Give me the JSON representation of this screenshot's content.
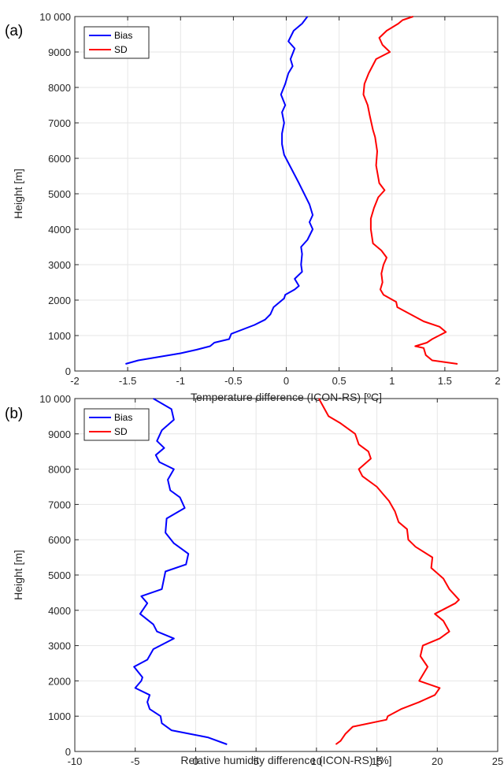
{
  "chart_data": [
    {
      "type": "line",
      "panel_label": "(a)",
      "xlabel": "Temperature difference (ICON-RS) [ºC]",
      "ylabel": "Height [m]",
      "xlim": [
        -2,
        2
      ],
      "ylim": [
        0,
        10000
      ],
      "xticks": [
        -2,
        -1.5,
        -1,
        -0.5,
        0,
        0.5,
        1,
        1.5,
        2
      ],
      "xtick_labels": [
        "-2",
        "-1.5",
        "-1",
        "-0.5",
        "0",
        "0.5",
        "1",
        "1.5",
        "2"
      ],
      "yticks": [
        0,
        1000,
        2000,
        3000,
        4000,
        5000,
        6000,
        7000,
        8000,
        9000,
        10000
      ],
      "ytick_labels": [
        "0",
        "1000",
        "2000",
        "3000",
        "4000",
        "5000",
        "6000",
        "7000",
        "8000",
        "9000",
        "10 000"
      ],
      "grid": true,
      "legend_position": "top-left",
      "series": [
        {
          "name": "Bias",
          "color": "#0000ff",
          "points": [
            [
              -1.52,
              200
            ],
            [
              -1.4,
              300
            ],
            [
              -1.2,
              400
            ],
            [
              -1.0,
              500
            ],
            [
              -0.85,
              600
            ],
            [
              -0.72,
              700
            ],
            [
              -0.68,
              800
            ],
            [
              -0.54,
              900
            ],
            [
              -0.52,
              1050
            ],
            [
              -0.3,
              1300
            ],
            [
              -0.2,
              1450
            ],
            [
              -0.15,
              1600
            ],
            [
              -0.12,
              1800
            ],
            [
              -0.02,
              2050
            ],
            [
              -0.01,
              2150
            ],
            [
              0.08,
              2300
            ],
            [
              0.12,
              2400
            ],
            [
              0.08,
              2600
            ],
            [
              0.15,
              2800
            ],
            [
              0.14,
              3000
            ],
            [
              0.15,
              3300
            ],
            [
              0.14,
              3500
            ],
            [
              0.2,
              3700
            ],
            [
              0.25,
              4000
            ],
            [
              0.22,
              4200
            ],
            [
              0.25,
              4400
            ],
            [
              0.22,
              4700
            ],
            [
              0.17,
              5000
            ],
            [
              0.12,
              5300
            ],
            [
              0.05,
              5700
            ],
            [
              -0.02,
              6100
            ],
            [
              -0.04,
              6400
            ],
            [
              -0.04,
              6700
            ],
            [
              -0.02,
              7000
            ],
            [
              -0.04,
              7300
            ],
            [
              -0.01,
              7500
            ],
            [
              -0.05,
              7800
            ],
            [
              -0.01,
              8100
            ],
            [
              0.02,
              8400
            ],
            [
              0.06,
              8600
            ],
            [
              0.04,
              8800
            ],
            [
              0.08,
              9100
            ],
            [
              0.02,
              9300
            ],
            [
              0.07,
              9600
            ],
            [
              0.15,
              9800
            ],
            [
              0.2,
              10000
            ]
          ]
        },
        {
          "name": "SD",
          "color": "#ff0000",
          "points": [
            [
              1.62,
              200
            ],
            [
              1.38,
              300
            ],
            [
              1.32,
              450
            ],
            [
              1.3,
              650
            ],
            [
              1.22,
              700
            ],
            [
              1.33,
              800
            ],
            [
              1.38,
              900
            ],
            [
              1.51,
              1100
            ],
            [
              1.45,
              1250
            ],
            [
              1.3,
              1400
            ],
            [
              1.05,
              1800
            ],
            [
              1.04,
              1950
            ],
            [
              0.92,
              2150
            ],
            [
              0.89,
              2300
            ],
            [
              0.91,
              2500
            ],
            [
              0.9,
              2750
            ],
            [
              0.92,
              3000
            ],
            [
              0.95,
              3200
            ],
            [
              0.9,
              3400
            ],
            [
              0.82,
              3600
            ],
            [
              0.8,
              4000
            ],
            [
              0.8,
              4300
            ],
            [
              0.83,
              4600
            ],
            [
              0.87,
              4900
            ],
            [
              0.93,
              5100
            ],
            [
              0.88,
              5300
            ],
            [
              0.85,
              5800
            ],
            [
              0.86,
              6200
            ],
            [
              0.84,
              6600
            ],
            [
              0.82,
              6800
            ],
            [
              0.79,
              7200
            ],
            [
              0.77,
              7500
            ],
            [
              0.73,
              7800
            ],
            [
              0.74,
              8100
            ],
            [
              0.78,
              8400
            ],
            [
              0.85,
              8800
            ],
            [
              0.98,
              9000
            ],
            [
              0.91,
              9200
            ],
            [
              0.88,
              9400
            ],
            [
              0.95,
              9600
            ],
            [
              1.06,
              9800
            ],
            [
              1.1,
              9900
            ],
            [
              1.2,
              10000
            ]
          ]
        }
      ]
    },
    {
      "type": "line",
      "panel_label": "(b)",
      "xlabel": "Relative humidity difference (ICON-RS) [%]",
      "ylabel": "Height [m]",
      "xlim": [
        -10,
        25
      ],
      "ylim": [
        0,
        10000
      ],
      "xticks": [
        -10,
        -5,
        0,
        5,
        10,
        15,
        20,
        25
      ],
      "xtick_labels": [
        "-10",
        "-5",
        "0",
        "5",
        "10",
        "15",
        "20",
        "25"
      ],
      "yticks": [
        0,
        1000,
        2000,
        3000,
        4000,
        5000,
        6000,
        7000,
        8000,
        9000,
        10000
      ],
      "ytick_labels": [
        "0",
        "1000",
        "2000",
        "3000",
        "4000",
        "5000",
        "6000",
        "7000",
        "8000",
        "9000",
        "10 000"
      ],
      "grid": true,
      "legend_position": "top-left",
      "series": [
        {
          "name": "Bias",
          "color": "#0000ff",
          "points": [
            [
              2.6,
              200
            ],
            [
              1.0,
              400
            ],
            [
              -0.5,
              500
            ],
            [
              -2.0,
              600
            ],
            [
              -2.8,
              800
            ],
            [
              -2.9,
              1000
            ],
            [
              -3.8,
              1200
            ],
            [
              -4.0,
              1400
            ],
            [
              -3.8,
              1600
            ],
            [
              -5.0,
              1800
            ],
            [
              -4.5,
              2000
            ],
            [
              -4.4,
              2100
            ],
            [
              -5.1,
              2400
            ],
            [
              -4.0,
              2600
            ],
            [
              -3.5,
              2900
            ],
            [
              -1.8,
              3200
            ],
            [
              -3.2,
              3400
            ],
            [
              -3.5,
              3600
            ],
            [
              -4.6,
              3900
            ],
            [
              -4.0,
              4200
            ],
            [
              -4.5,
              4400
            ],
            [
              -2.8,
              4600
            ],
            [
              -2.5,
              5100
            ],
            [
              -0.8,
              5300
            ],
            [
              -0.6,
              5600
            ],
            [
              -1.8,
              5900
            ],
            [
              -2.5,
              6200
            ],
            [
              -2.4,
              6600
            ],
            [
              -0.9,
              6900
            ],
            [
              -1.3,
              7200
            ],
            [
              -2.1,
              7400
            ],
            [
              -2.3,
              7700
            ],
            [
              -1.8,
              8000
            ],
            [
              -3.0,
              8200
            ],
            [
              -3.3,
              8400
            ],
            [
              -2.6,
              8600
            ],
            [
              -3.2,
              8800
            ],
            [
              -2.8,
              9100
            ],
            [
              -1.8,
              9400
            ],
            [
              -2.0,
              9700
            ],
            [
              -3.5,
              10000
            ]
          ]
        },
        {
          "name": "SD",
          "color": "#ff0000",
          "points": [
            [
              11.6,
              200
            ],
            [
              12.0,
              300
            ],
            [
              12.4,
              500
            ],
            [
              13.0,
              700
            ],
            [
              15.8,
              900
            ],
            [
              15.9,
              1000
            ],
            [
              17.0,
              1200
            ],
            [
              18.5,
              1400
            ],
            [
              19.8,
              1600
            ],
            [
              20.2,
              1800
            ],
            [
              18.5,
              2000
            ],
            [
              19.2,
              2400
            ],
            [
              18.6,
              2700
            ],
            [
              18.8,
              3000
            ],
            [
              20.2,
              3200
            ],
            [
              21.0,
              3400
            ],
            [
              20.5,
              3700
            ],
            [
              19.8,
              3900
            ],
            [
              21.5,
              4200
            ],
            [
              21.8,
              4300
            ],
            [
              21.0,
              4600
            ],
            [
              20.5,
              4900
            ],
            [
              19.5,
              5200
            ],
            [
              19.6,
              5500
            ],
            [
              18.2,
              5800
            ],
            [
              17.6,
              6000
            ],
            [
              17.5,
              6300
            ],
            [
              16.8,
              6500
            ],
            [
              16.5,
              6800
            ],
            [
              16.0,
              7100
            ],
            [
              15.5,
              7300
            ],
            [
              15.0,
              7500
            ],
            [
              13.8,
              7800
            ],
            [
              13.5,
              8000
            ],
            [
              14.5,
              8300
            ],
            [
              14.3,
              8500
            ],
            [
              13.5,
              8700
            ],
            [
              13.2,
              9000
            ],
            [
              12.0,
              9300
            ],
            [
              11.0,
              9500
            ],
            [
              10.2,
              10000
            ]
          ]
        }
      ]
    }
  ]
}
